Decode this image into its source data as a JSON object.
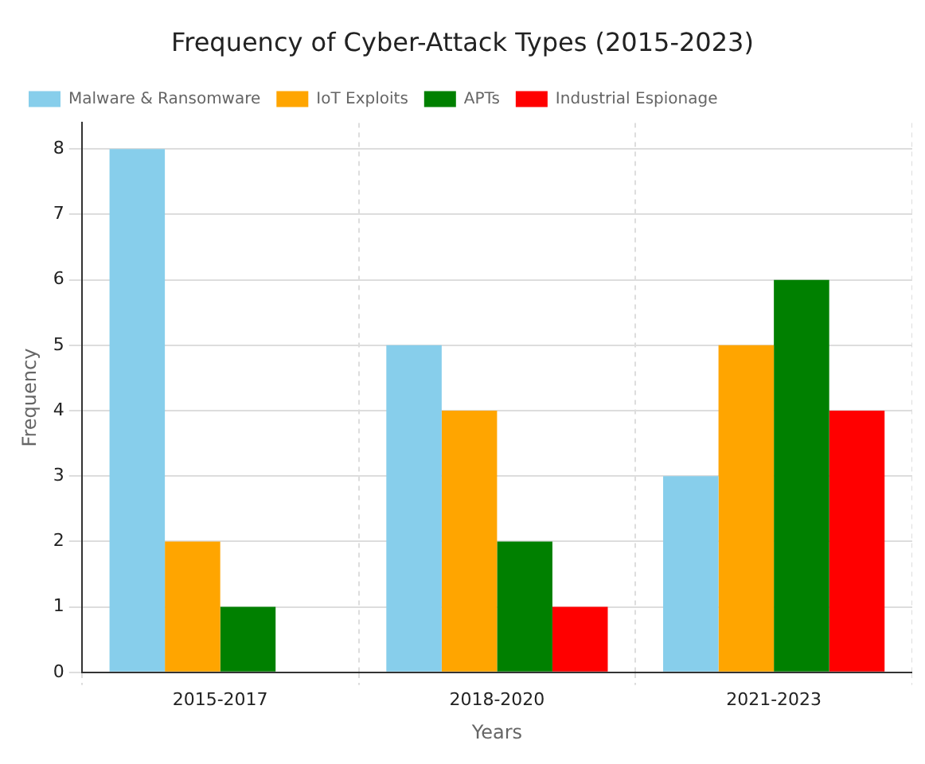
{
  "chart_data": {
    "type": "bar",
    "title": "Frequency of Cyber-Attack Types (2015-2023)",
    "xlabel": "Years",
    "ylabel": "Frequency",
    "categories": [
      "2015-2017",
      "2018-2020",
      "2021-2023"
    ],
    "series": [
      {
        "name": "Malware & Ransomware",
        "color": "#87ceeb",
        "values": [
          8,
          5,
          3
        ]
      },
      {
        "name": "IoT Exploits",
        "color": "#ffa500",
        "values": [
          2,
          4,
          5
        ]
      },
      {
        "name": "APTs",
        "color": "#008000",
        "values": [
          1,
          2,
          6
        ]
      },
      {
        "name": "Industrial Espionage",
        "color": "#ff0000",
        "values": [
          0,
          1,
          4
        ]
      }
    ],
    "ylim": [
      0,
      8.4
    ],
    "yticks": [
      0,
      1,
      2,
      3,
      4,
      5,
      6,
      7,
      8
    ],
    "grid": true,
    "legend": "top left"
  }
}
